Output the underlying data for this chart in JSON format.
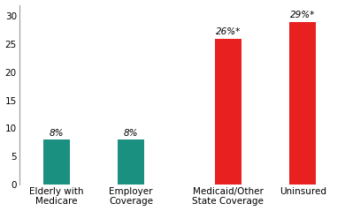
{
  "categories": [
    "Elderly with\nMedicare",
    "Employer\nCoverage",
    "Medicaid/Other\nState Coverage",
    "Uninsured"
  ],
  "values": [
    8,
    8,
    26,
    29
  ],
  "bar_colors": [
    "#1a9080",
    "#1a9080",
    "#e82020",
    "#e82020"
  ],
  "bar_labels": [
    "8%",
    "8%",
    "26%*",
    "29%*"
  ],
  "ylim": [
    0,
    32
  ],
  "yticks": [
    0,
    5,
    10,
    15,
    20,
    25,
    30
  ],
  "background_color": "#ffffff",
  "bar_width": 0.35,
  "label_fontsize": 7.5,
  "tick_fontsize": 7.5,
  "x_positions": [
    0.5,
    1.5,
    2.8,
    3.8
  ]
}
